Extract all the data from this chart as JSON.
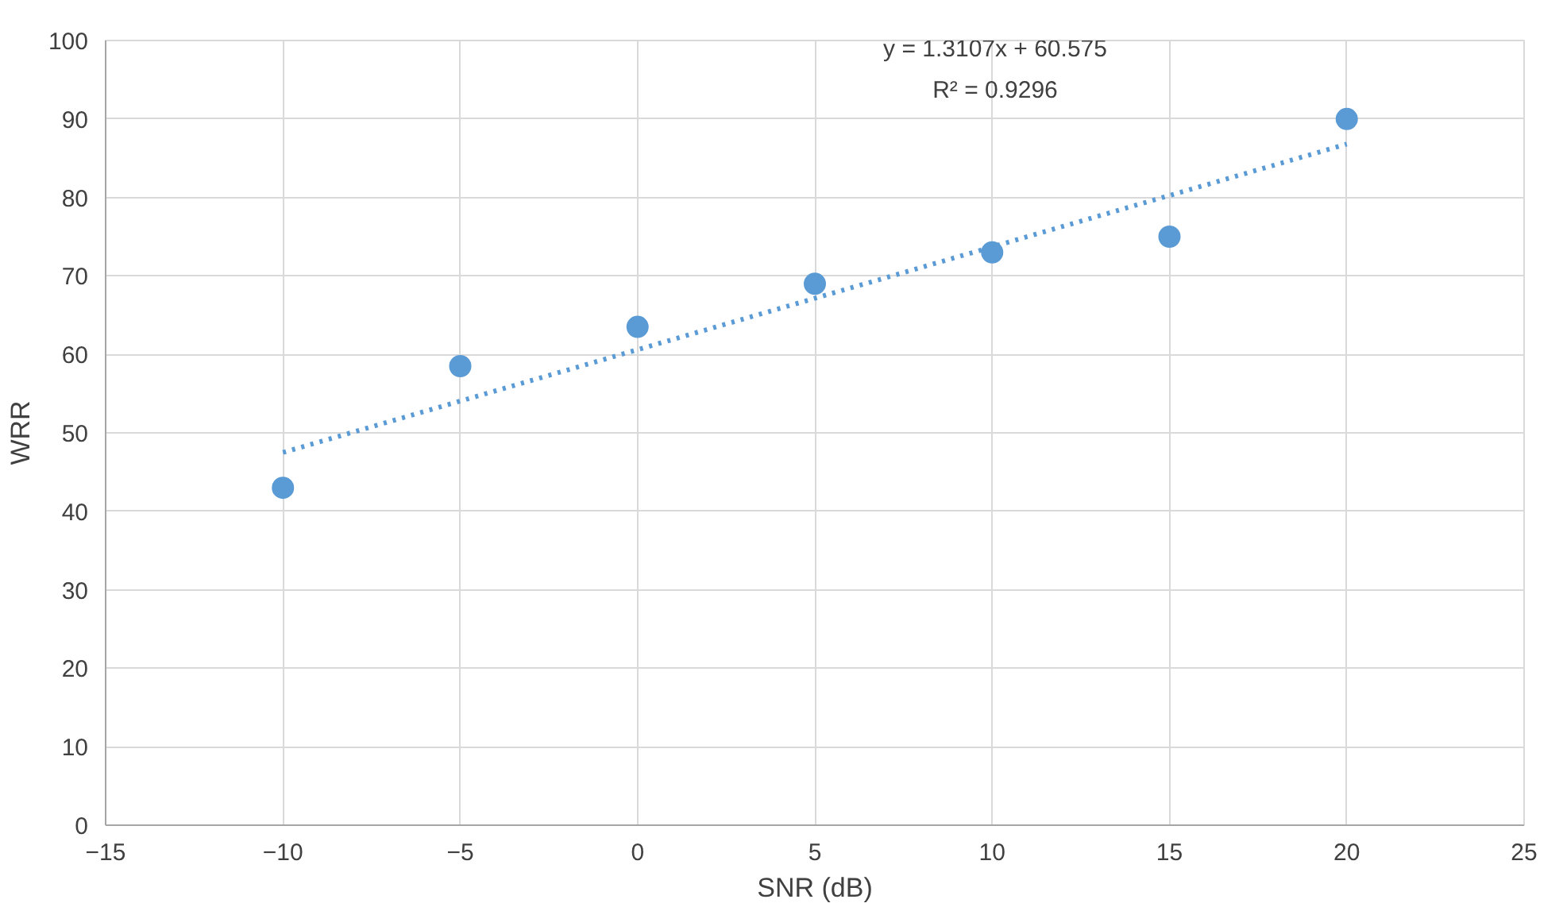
{
  "chart_data": {
    "type": "scatter",
    "xlabel": "SNR (dB)",
    "ylabel": "WRR",
    "xlim": [
      -15,
      25
    ],
    "xticks": [
      -15,
      -10,
      -5,
      0,
      5,
      10,
      15,
      20,
      25
    ],
    "ylim": [
      0,
      100
    ],
    "yticks": [
      0,
      10,
      20,
      30,
      40,
      50,
      60,
      70,
      80,
      90,
      100
    ],
    "grid": true,
    "series": [
      {
        "color": "#5b9bd5",
        "marker": "circle",
        "x": [
          -10,
          -5,
          0,
          5,
          10,
          15,
          20
        ],
        "values": [
          43,
          58.5,
          63.5,
          69,
          73,
          75,
          90
        ]
      },
      {
        "type": "line",
        "color": "#5b9bd5",
        "line_style": "dotted",
        "x": [
          -10,
          20
        ],
        "values": [
          47.5,
          86.8
        ]
      }
    ],
    "annotations": [
      "y = 1.3107x + 60.575",
      "R² = 0.9296"
    ]
  }
}
